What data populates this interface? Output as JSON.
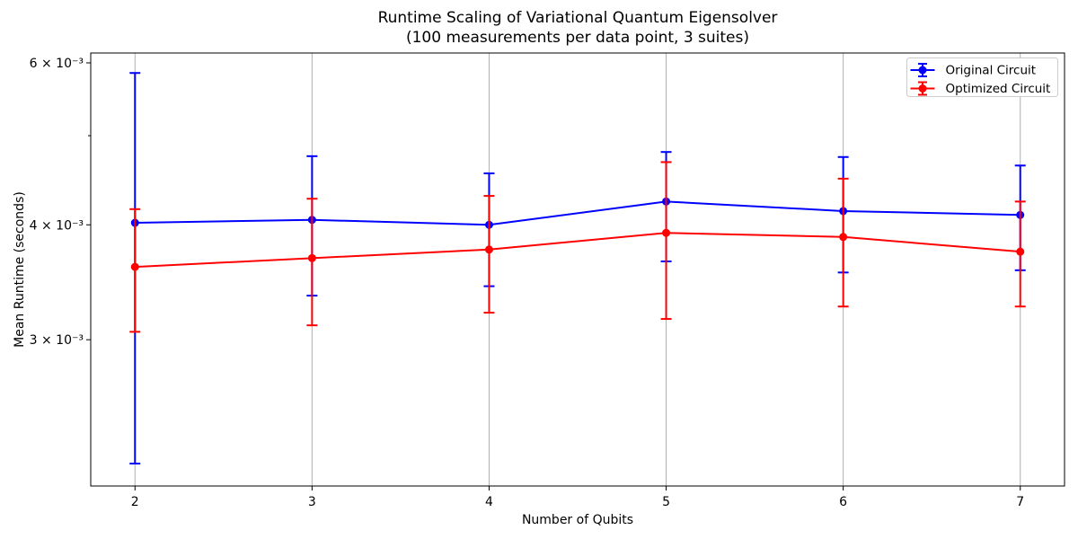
{
  "chart_data": {
    "type": "line",
    "title": "Runtime Scaling of Variational Quantum Eigensolver",
    "subtitle": "(100 measurements per data point, 3 suites)",
    "xlabel": "Number of Qubits",
    "ylabel": "Mean Runtime (seconds)",
    "yscale": "log",
    "xlim": [
      1.75,
      7.25
    ],
    "ylim": [
      0.00208,
      0.00615
    ],
    "grid": "vertical-only",
    "grid_color": "#b0b0b0",
    "axis_color": "#000000",
    "legend_position": "upper-right",
    "x": [
      2,
      3,
      4,
      5,
      6,
      7
    ],
    "x_ticks": [
      {
        "value": 2,
        "label": "2"
      },
      {
        "value": 3,
        "label": "3"
      },
      {
        "value": 4,
        "label": "4"
      },
      {
        "value": 5,
        "label": "5"
      },
      {
        "value": 6,
        "label": "6"
      },
      {
        "value": 7,
        "label": "7"
      }
    ],
    "y_ticks": [
      {
        "value": 0.006,
        "label": "6 × 10⁻³"
      },
      {
        "value": 0.005,
        "label": ""
      },
      {
        "value": 0.004,
        "label": "4 × 10⁻³"
      },
      {
        "value": 0.003,
        "label": "3 × 10⁻³"
      }
    ],
    "series": [
      {
        "name": "Original Circuit",
        "color": "#0000ff",
        "means": [
          0.00402,
          0.00405,
          0.004,
          0.00424,
          0.00414,
          0.0041
        ],
        "err_lower": [
          0.0022,
          0.00335,
          0.00343,
          0.00365,
          0.00355,
          0.00357
        ],
        "err_upper": [
          0.00585,
          0.00475,
          0.00455,
          0.0048,
          0.00474,
          0.00464
        ]
      },
      {
        "name": "Optimized Circuit",
        "color": "#ff0000",
        "means": [
          0.0036,
          0.00368,
          0.00376,
          0.00392,
          0.00388,
          0.00374
        ],
        "err_lower": [
          0.00306,
          0.00311,
          0.00321,
          0.00316,
          0.00326,
          0.00326
        ],
        "err_upper": [
          0.00416,
          0.00427,
          0.0043,
          0.00468,
          0.00449,
          0.00424
        ]
      }
    ]
  }
}
